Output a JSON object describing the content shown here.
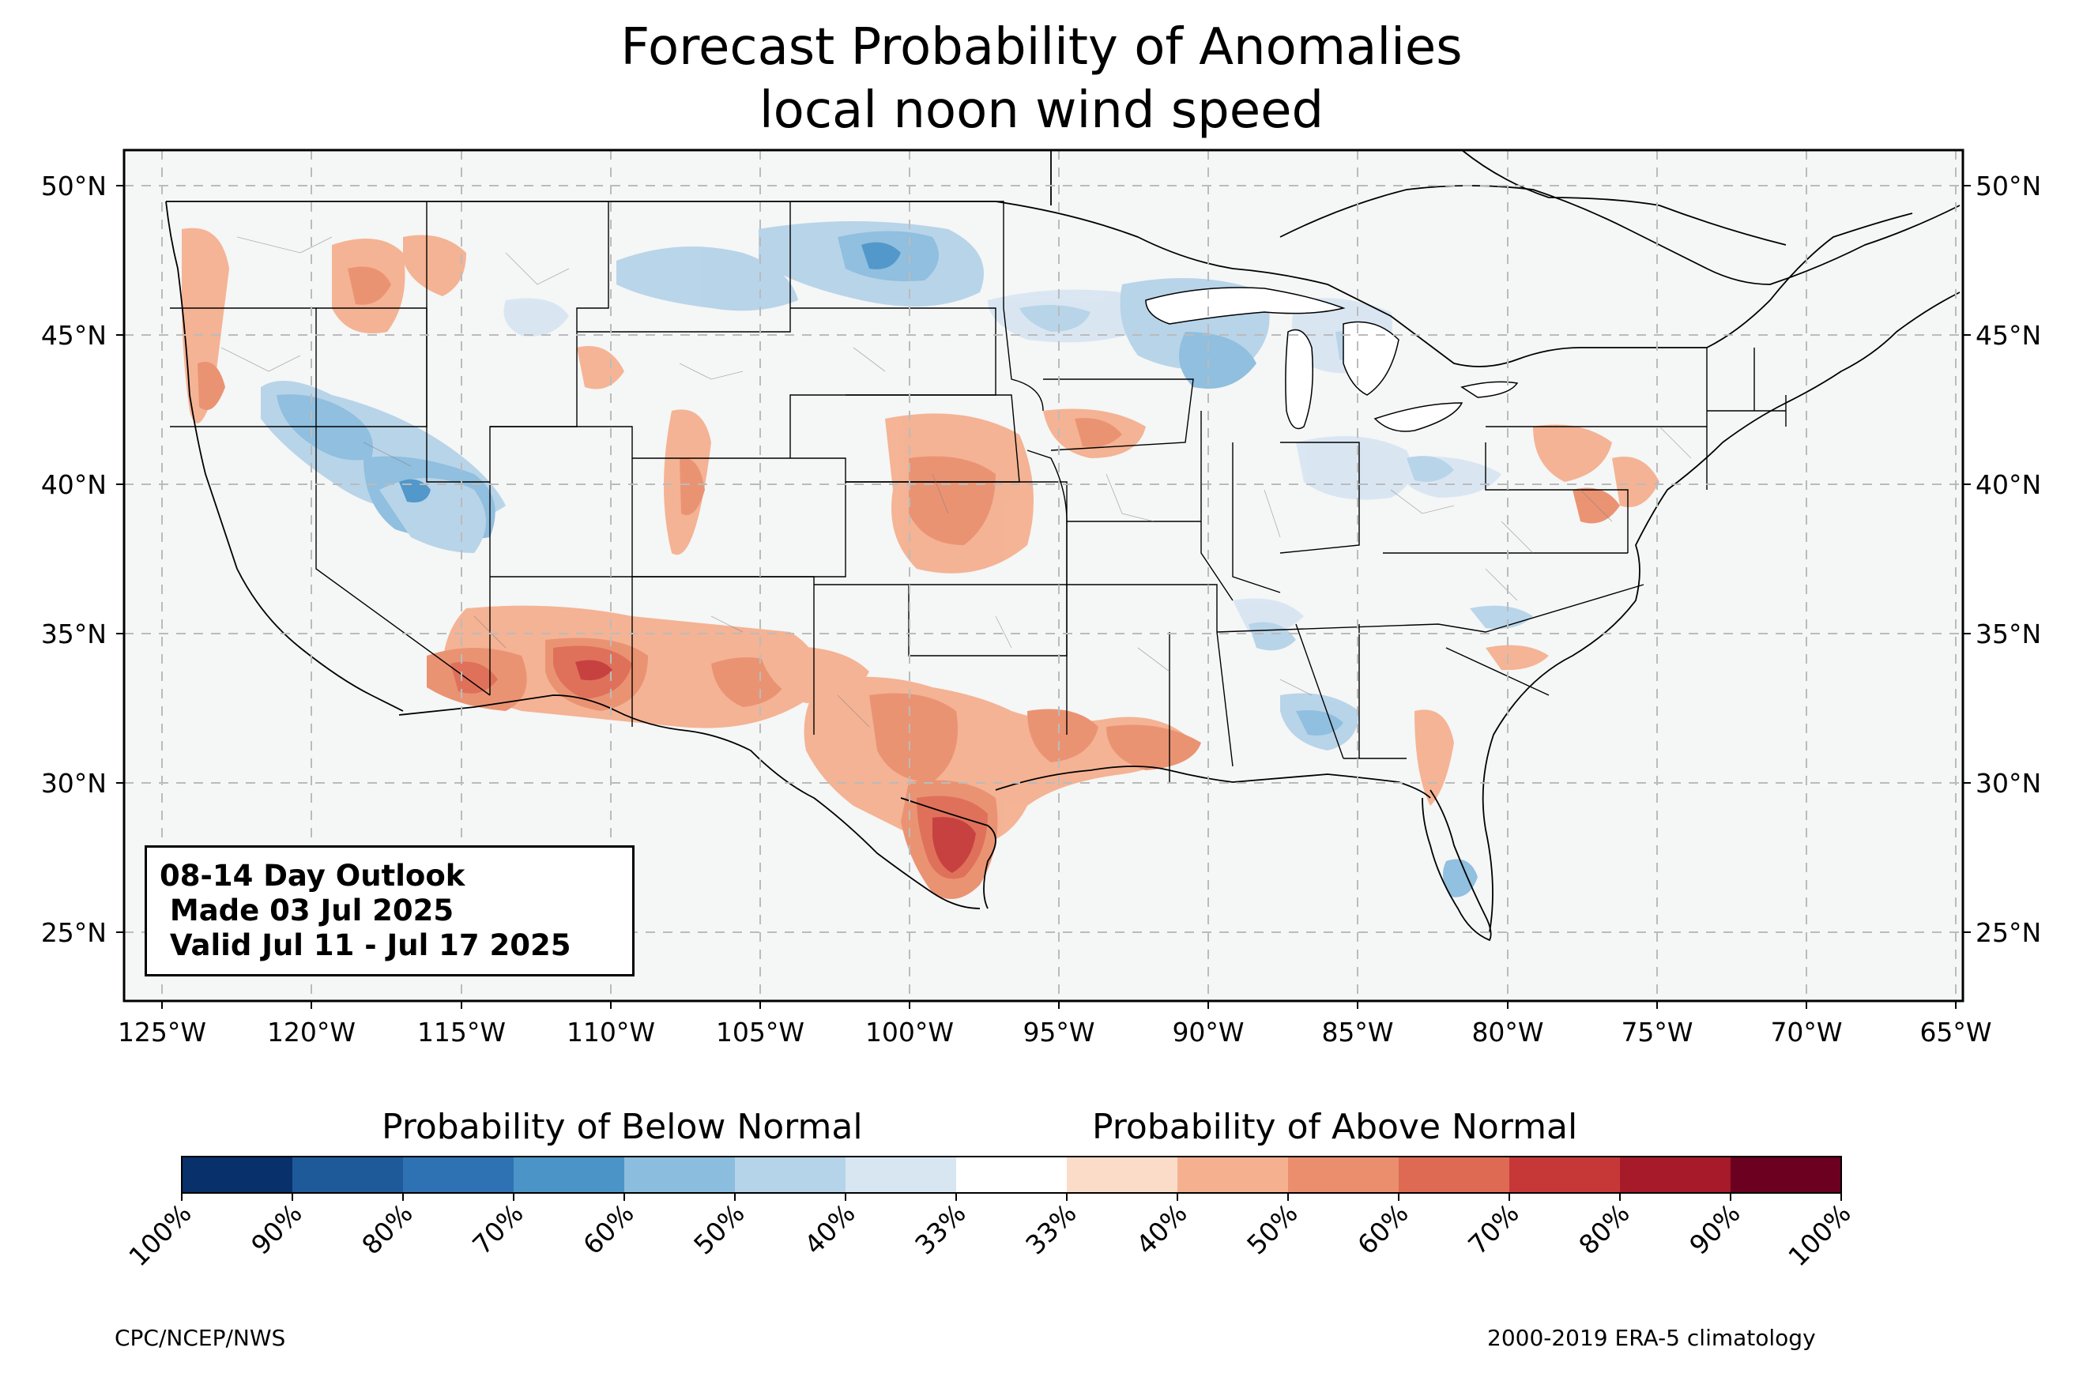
{
  "title": {
    "line1": "Forecast Probability of Anomalies",
    "line2": "local noon wind speed"
  },
  "map": {
    "lat_ticks": [
      "50°N",
      "45°N",
      "40°N",
      "35°N",
      "30°N",
      "25°N"
    ],
    "lon_ticks": [
      "125°W",
      "120°W",
      "115°W",
      "110°W",
      "105°W",
      "100°W",
      "95°W",
      "90°W",
      "85°W",
      "80°W",
      "75°W",
      "70°W",
      "65°W"
    ],
    "background_color": "#f5f6f6",
    "gridlines": true
  },
  "outlook_box": {
    "line1": "08-14 Day Outlook",
    "line2": " Made 03 Jul 2025",
    "line3": " Valid Jul 11 - Jul 17 2025"
  },
  "colorbar": {
    "below_label": "Probability of Below Normal",
    "above_label": "Probability of Above Normal",
    "tick_labels": [
      "100%",
      "90%",
      "80%",
      "70%",
      "60%",
      "50%",
      "40%",
      "33%",
      "33%",
      "40%",
      "50%",
      "60%",
      "70%",
      "80%",
      "90%",
      "100%"
    ],
    "colors": [
      "#08306b",
      "#1e5a9a",
      "#2f72b3",
      "#4a94c8",
      "#8bbdde",
      "#b5d3e9",
      "#d8e6f2",
      "#ffffff",
      "#fbdcc9",
      "#f4b08f",
      "#ea8e6d",
      "#de6a53",
      "#c63838",
      "#a61a29",
      "#6b0020"
    ]
  },
  "footer": {
    "left": "CPC/NCEP/NWS",
    "right": "2000-2019 ERA-5 climatology"
  }
}
